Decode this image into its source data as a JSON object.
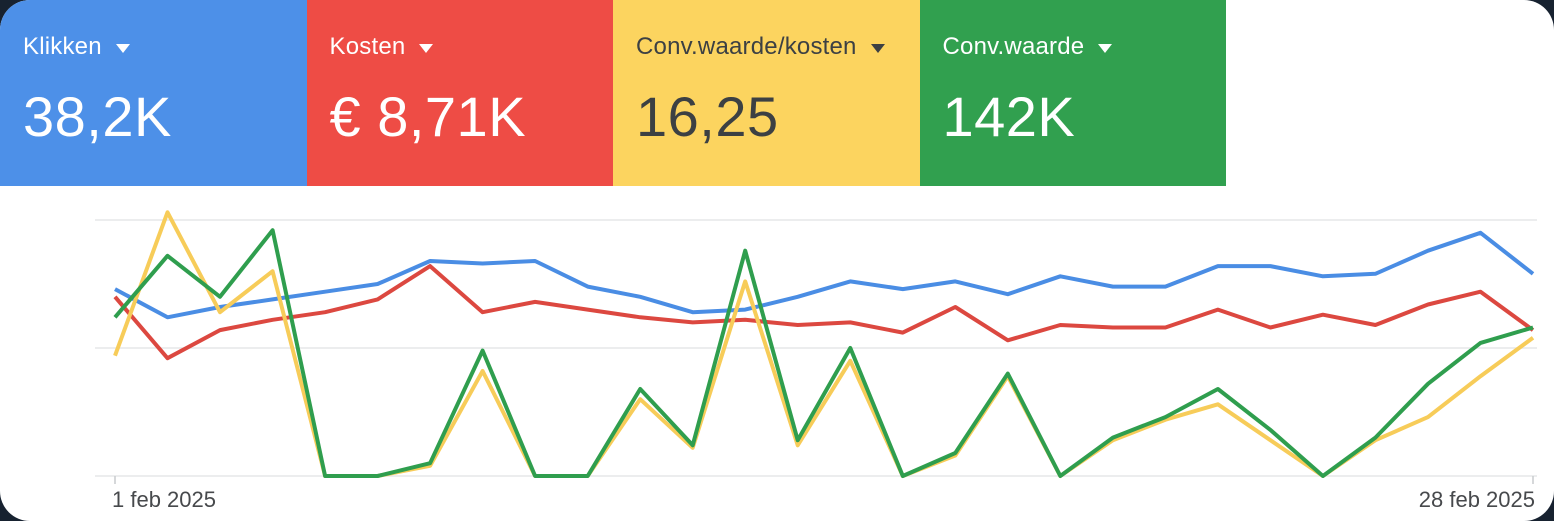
{
  "colors": {
    "background": "#172230",
    "surface": "#ffffff",
    "grid_line": "#e6e7e9",
    "axis_tick": "#c8cbce",
    "axis_text": "#47494c"
  },
  "metric_cards": [
    {
      "label": "Klikken",
      "value": "38,2K",
      "bg": "#4d90e8",
      "text_color": "#ffffff"
    },
    {
      "label": "Kosten",
      "value": "€ 8,71K",
      "bg": "#ee4c45",
      "text_color": "#ffffff"
    },
    {
      "label": "Conv.waarde/kosten",
      "value": "16,25",
      "bg": "#fcd45f",
      "text_color": "#3c4043"
    },
    {
      "label": "Conv.waarde",
      "value": "142K",
      "bg": "#31a04f",
      "text_color": "#ffffff"
    }
  ],
  "chart_data": {
    "type": "line",
    "title": "",
    "xlabel": "",
    "ylabel": "",
    "grid": true,
    "legend_position": "none (series colors match scorecards above)",
    "x_axis": {
      "start_label": "1 feb 2025",
      "end_label": "28 feb 2025",
      "days": 28
    },
    "y_scale": "normalized 0-100 per series; no y-axis tick labels shown (0 = bottom gridline, 100 = top gridline)",
    "series": [
      {
        "name": "Klikken",
        "color": "#4a8de4",
        "values": [
          73,
          62,
          66,
          69,
          72,
          75,
          84,
          83,
          84,
          74,
          70,
          64,
          65,
          70,
          76,
          73,
          76,
          71,
          78,
          74,
          74,
          82,
          82,
          78,
          79,
          88,
          95,
          79
        ]
      },
      {
        "name": "Kosten",
        "color": "#dc4840",
        "values": [
          70,
          46,
          57,
          61,
          64,
          69,
          82,
          64,
          68,
          65,
          62,
          60,
          61,
          59,
          60,
          56,
          66,
          53,
          59,
          58,
          58,
          65,
          58,
          63,
          59,
          67,
          72,
          57
        ]
      },
      {
        "name": "Conv.waarde/kosten",
        "color": "#f7cc59",
        "values": [
          47,
          103,
          64,
          80,
          0,
          0,
          4,
          41,
          0,
          0,
          30,
          11,
          76,
          12,
          45,
          0,
          8,
          39,
          0,
          14,
          22,
          28,
          14,
          0,
          14,
          23,
          39,
          54
        ]
      },
      {
        "name": "Conv.waarde",
        "color": "#2f9e4e",
        "values": [
          62,
          86,
          70,
          96,
          0,
          0,
          5,
          49,
          0,
          0,
          34,
          12,
          88,
          14,
          50,
          0,
          9,
          40,
          0,
          15,
          23,
          34,
          18,
          0,
          15,
          36,
          52,
          58
        ]
      }
    ]
  }
}
